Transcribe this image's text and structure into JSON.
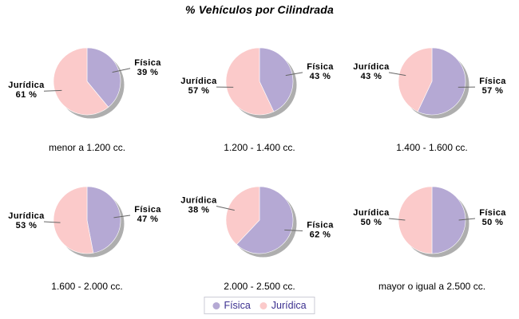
{
  "title": "% Vehículos por Cilindrada",
  "colors": {
    "slice_fills": {
      "Física": "#b5a9d4",
      "Jurídica": "#fbcaca"
    },
    "shadow": "#9a9a9a",
    "leader_line": "#666666",
    "label_text": "#000000",
    "legend_text": "#3b2f8f",
    "legend_border": "#ccccd6"
  },
  "legend": {
    "position": "bottom-center",
    "items": [
      {
        "label": "Física",
        "color": "#b5a9d4"
      },
      {
        "label": "Jurídica",
        "color": "#fbcaca"
      }
    ]
  },
  "chart_data": [
    {
      "type": "pie",
      "caption": "menor a 1.200 cc.",
      "slices": [
        {
          "label": "Física",
          "pct": 39,
          "pct_label": "39 %"
        },
        {
          "label": "Jurídica",
          "pct": 61,
          "pct_label": "61 %"
        }
      ]
    },
    {
      "type": "pie",
      "caption": "1.200 - 1.400 cc.",
      "slices": [
        {
          "label": "Física",
          "pct": 43,
          "pct_label": "43 %"
        },
        {
          "label": "Jurídica",
          "pct": 57,
          "pct_label": "57 %"
        }
      ]
    },
    {
      "type": "pie",
      "caption": "1.400 - 1.600 cc.",
      "slices": [
        {
          "label": "Física",
          "pct": 57,
          "pct_label": "57 %"
        },
        {
          "label": "Jurídica",
          "pct": 43,
          "pct_label": "43 %"
        }
      ]
    },
    {
      "type": "pie",
      "caption": "1.600 - 2.000 cc.",
      "slices": [
        {
          "label": "Física",
          "pct": 47,
          "pct_label": "47 %"
        },
        {
          "label": "Jurídica",
          "pct": 53,
          "pct_label": "53 %"
        }
      ]
    },
    {
      "type": "pie",
      "caption": "2.000 - 2.500 cc.",
      "slices": [
        {
          "label": "Física",
          "pct": 62,
          "pct_label": "62 %"
        },
        {
          "label": "Jurídica",
          "pct": 38,
          "pct_label": "38 %"
        }
      ]
    },
    {
      "type": "pie",
      "caption": "mayor o igual a 2.500 cc.",
      "slices": [
        {
          "label": "Física",
          "pct": 50,
          "pct_label": "50 %"
        },
        {
          "label": "Jurídica",
          "pct": 50,
          "pct_label": "50 %"
        }
      ]
    }
  ]
}
